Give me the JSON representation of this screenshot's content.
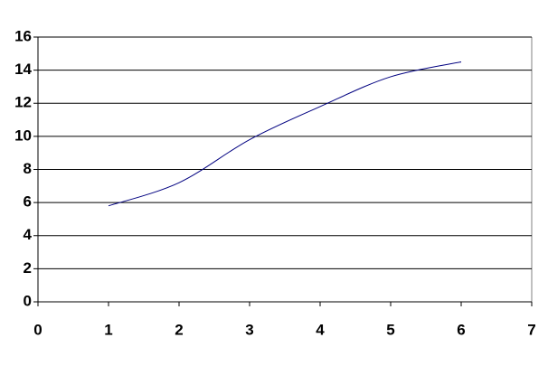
{
  "chart_data": {
    "type": "line",
    "x": [
      1,
      2,
      3,
      4,
      5,
      6
    ],
    "values": [
      5.8,
      7.2,
      9.8,
      11.8,
      13.6,
      14.5
    ],
    "color": "#000080",
    "smooth": true,
    "xlim": [
      0,
      7
    ],
    "xticks": [
      0,
      1,
      2,
      3,
      4,
      5,
      6,
      7
    ],
    "ylim": [
      0,
      16
    ],
    "yticks": [
      0,
      2,
      4,
      6,
      8,
      10,
      12,
      14,
      16
    ],
    "grid": true
  }
}
